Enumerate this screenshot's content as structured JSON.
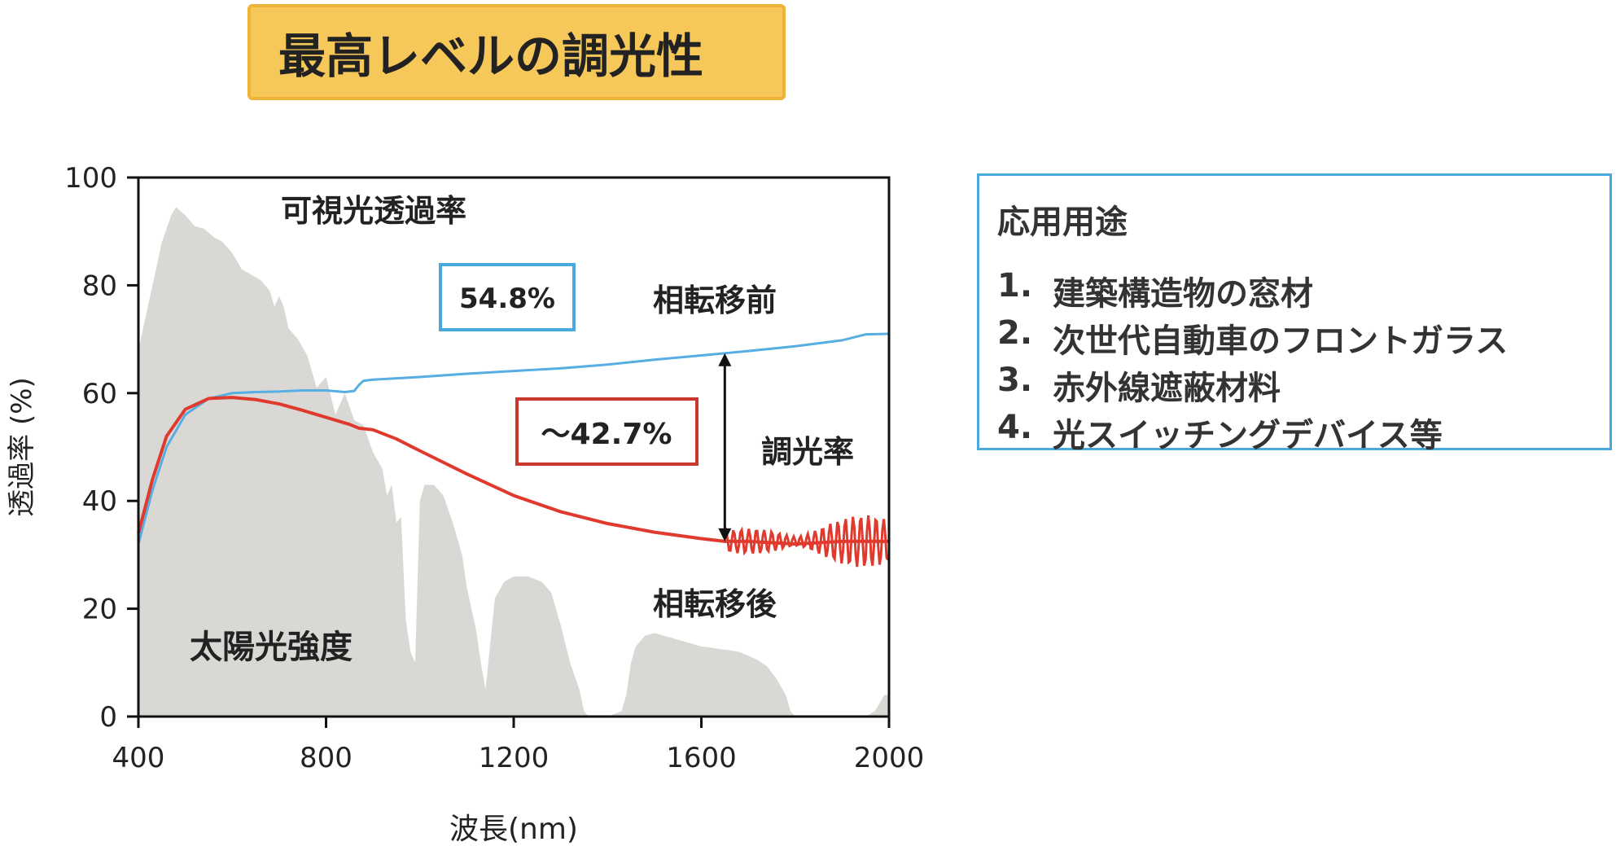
{
  "title": "最高レベルの調光性",
  "applications": {
    "title": "応用用途",
    "items": [
      {
        "num": "1.",
        "text": "建築構造物の窓材"
      },
      {
        "num": "2.",
        "text": "次世代自動車のフロントガラス"
      },
      {
        "num": "3.",
        "text": "赤外線遮蔽材料"
      },
      {
        "num": "4.",
        "text": "光スイッチングデバイス等"
      }
    ]
  },
  "chart_data": {
    "type": "line",
    "xlabel": "波長(nm)",
    "ylabel": "透過率 (%)",
    "xlim": [
      400,
      2000
    ],
    "ylim": [
      0,
      100
    ],
    "xticks": [
      400,
      800,
      1200,
      1600,
      2000
    ],
    "yticks": [
      0,
      20,
      40,
      60,
      80,
      100
    ],
    "grid": false,
    "series": [
      {
        "name": "相転移前",
        "color": "#56aee2",
        "x": [
          400,
          430,
          460,
          500,
          550,
          600,
          650,
          700,
          750,
          800,
          840,
          860,
          870,
          880,
          900,
          1000,
          1100,
          1200,
          1300,
          1400,
          1500,
          1600,
          1650,
          1700,
          1800,
          1900,
          1950,
          2000
        ],
        "y": [
          32,
          42,
          50,
          56,
          59,
          60,
          60.2,
          60.3,
          60.5,
          60.5,
          60.2,
          60.4,
          61.5,
          62.3,
          62.5,
          63,
          63.6,
          64.1,
          64.6,
          65.3,
          66.2,
          67,
          67.4,
          67.8,
          68.7,
          69.8,
          70.9,
          71
        ]
      },
      {
        "name": "相転移後",
        "color": "#e03a2e",
        "x": [
          400,
          430,
          460,
          500,
          550,
          600,
          650,
          700,
          750,
          800,
          850,
          870,
          900,
          950,
          1000,
          1100,
          1200,
          1300,
          1400,
          1500,
          1600,
          1650,
          1700,
          1800,
          1900,
          2000
        ],
        "y": [
          34,
          44,
          52,
          57,
          59,
          59.2,
          58.8,
          58,
          56.8,
          55.5,
          54.2,
          53.5,
          53.2,
          51.5,
          49.3,
          45,
          41,
          38,
          35.8,
          34.2,
          33,
          32.5,
          32.5,
          32,
          32.5,
          32.5
        ]
      },
      {
        "name": "太陽光強度",
        "color": "#d9d8d5",
        "x": [
          400,
          430,
          450,
          470,
          480,
          500,
          520,
          540,
          560,
          580,
          600,
          620,
          640,
          660,
          680,
          690,
          700,
          710,
          720,
          740,
          760,
          770,
          780,
          800,
          820,
          840,
          860,
          880,
          900,
          920,
          930,
          940,
          950,
          960,
          970,
          980,
          990,
          1000,
          1010,
          1030,
          1050,
          1070,
          1090,
          1100,
          1110,
          1120,
          1130,
          1140,
          1160,
          1180,
          1200,
          1230,
          1260,
          1280,
          1300,
          1320,
          1340,
          1350,
          1360,
          1370,
          1400,
          1430,
          1440,
          1450,
          1460,
          1480,
          1500,
          1520,
          1540,
          1560,
          1580,
          1600,
          1620,
          1640,
          1660,
          1680,
          1700,
          1720,
          1740,
          1760,
          1780,
          1790,
          1800,
          1850,
          1900,
          1950,
          1970,
          1990,
          2000
        ],
        "y": [
          68,
          80,
          88,
          93,
          94.5,
          93,
          91,
          90.5,
          89,
          88,
          86,
          83,
          82,
          81,
          79,
          76,
          78,
          76,
          72,
          70,
          67,
          64,
          61,
          63,
          56,
          60,
          55,
          54,
          49,
          46,
          41,
          43,
          36,
          37,
          18,
          12,
          10,
          40,
          43,
          43,
          41,
          36,
          30,
          24,
          20,
          16,
          10,
          5,
          22,
          25,
          26,
          26,
          25,
          23,
          17,
          10,
          5,
          1,
          0,
          0,
          0,
          1,
          4,
          10,
          13,
          15,
          15.5,
          15,
          14.5,
          14,
          13.5,
          13,
          12.8,
          12.5,
          12.3,
          12,
          11.3,
          10.5,
          9.3,
          7,
          4,
          1,
          0,
          0,
          0,
          0,
          1,
          4,
          4
        ]
      }
    ],
    "annotations": {
      "visible_label": "可視光透過率",
      "before_label": "相転移前",
      "after_label": "相転移後",
      "solar_label": "太陽光強度",
      "modulation_label": "調光率",
      "box_blue": "54.8%",
      "box_red": "〜42.7%",
      "blue_box_color": "#4aa8dc",
      "red_box_color": "#c9382d",
      "arrow_x": 1650,
      "arrow_y_from": 32.5,
      "arrow_y_to": 67.4
    }
  }
}
